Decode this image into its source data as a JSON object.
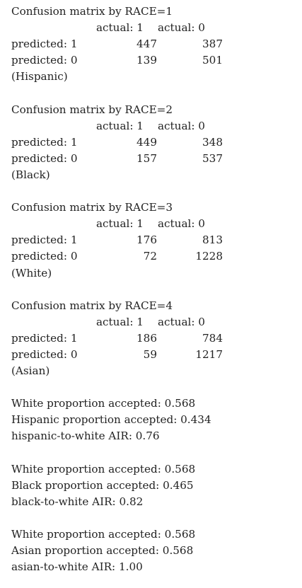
{
  "matrices": [
    {
      "title": "Confusion matrix by RACE=1",
      "col_actual_1": "actual: 1",
      "col_actual_0": "actual: 0",
      "rows": [
        {
          "label": "predicted: 1",
          "a1": "447",
          "a0": "387"
        },
        {
          "label": "predicted: 0",
          "a1": "139",
          "a0": "501"
        }
      ],
      "group": "(Hispanic)"
    },
    {
      "title": "Confusion matrix by RACE=2",
      "col_actual_1": "actual: 1",
      "col_actual_0": "actual: 0",
      "rows": [
        {
          "label": "predicted: 1",
          "a1": "449",
          "a0": "348"
        },
        {
          "label": "predicted: 0",
          "a1": "157",
          "a0": "537"
        }
      ],
      "group": "(Black)"
    },
    {
      "title": "Confusion matrix by RACE=3",
      "col_actual_1": "actual: 1",
      "col_actual_0": "actual: 0",
      "rows": [
        {
          "label": "predicted: 1",
          "a1": "176",
          "a0": "813"
        },
        {
          "label": "predicted: 0",
          "a1": "72",
          "a0": "1228"
        }
      ],
      "group": "(White)"
    },
    {
      "title": "Confusion matrix by RACE=4",
      "col_actual_1": "actual: 1",
      "col_actual_0": "actual: 0",
      "rows": [
        {
          "label": "predicted: 1",
          "a1": "186",
          "a0": "784"
        },
        {
          "label": "predicted: 0",
          "a1": "59",
          "a0": "1217"
        }
      ],
      "group": "(Asian)"
    }
  ],
  "air": [
    {
      "lines": [
        "White proportion accepted: 0.568",
        "Hispanic proportion accepted: 0.434",
        "hispanic-to-white AIR: 0.76"
      ]
    },
    {
      "lines": [
        "White proportion accepted: 0.568",
        "Black proportion accepted: 0.465",
        "black-to-white AIR: 0.82"
      ]
    },
    {
      "lines": [
        "White proportion accepted: 0.568",
        "Asian proportion accepted: 0.568",
        "asian-to-white AIR: 1.00"
      ]
    }
  ]
}
